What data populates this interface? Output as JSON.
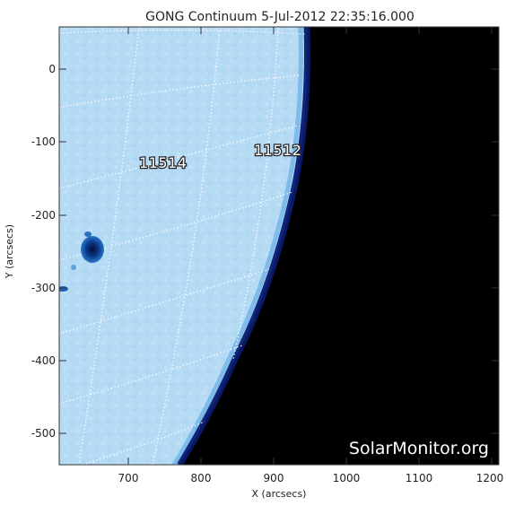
{
  "title": "GONG Continuum   5-Jul-2012 22:35:16.000",
  "x_axis": {
    "label": "X (arcsecs)",
    "ticks": [
      "700",
      "800",
      "900",
      "1000",
      "1100",
      "1200"
    ]
  },
  "y_axis": {
    "label": "Y (arcsecs)",
    "ticks": [
      "0",
      "-100",
      "-200",
      "-300",
      "-400",
      "-500"
    ]
  },
  "regions": [
    {
      "label": "11514"
    },
    {
      "label": "11512"
    }
  ],
  "watermark": "SolarMonitor.org",
  "colors": {
    "disk": "#b7dcf5",
    "limb_dark": "#0a1a6e",
    "sky": "#000000",
    "grid": "#ffffff",
    "sunspot": "#0b4a9c"
  }
}
